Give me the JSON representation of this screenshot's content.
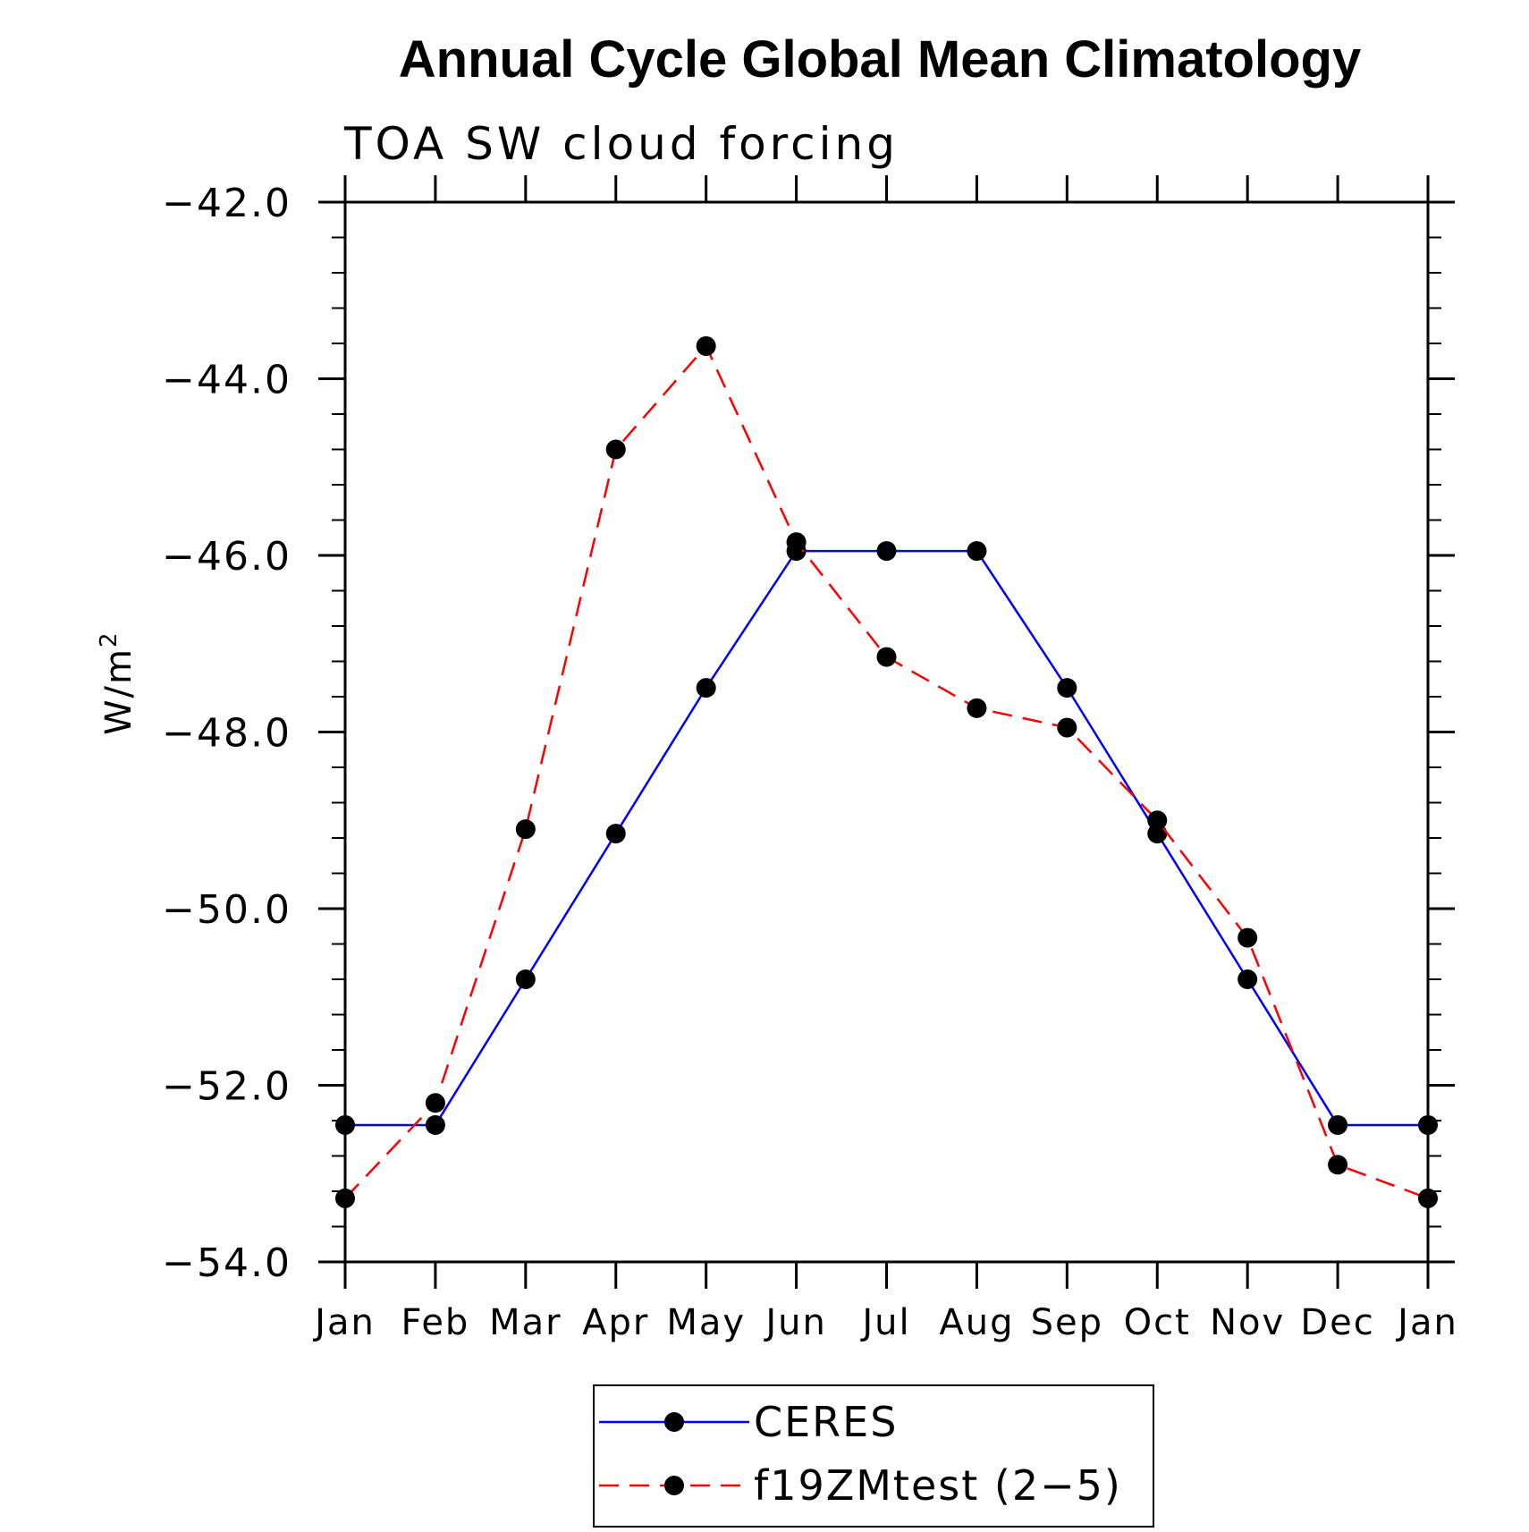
{
  "chart_data": {
    "type": "line",
    "title": "Annual Cycle Global Mean Climatology",
    "subtitle": "TOA SW cloud forcing",
    "ylabel_main": "W/m",
    "ylabel_sup": "2",
    "xlabel": "",
    "categories": [
      "Jan",
      "Feb",
      "Mar",
      "Apr",
      "May",
      "Jun",
      "Jul",
      "Aug",
      "Sep",
      "Oct",
      "Nov",
      "Dec",
      "Jan"
    ],
    "ylim": [
      -54.0,
      -42.0
    ],
    "yticks": [
      -42.0,
      -44.0,
      -46.0,
      -48.0,
      -50.0,
      -52.0,
      -54.0
    ],
    "ytick_labels": [
      "−42.0",
      "−44.0",
      "−46.0",
      "−48.0",
      "−50.0",
      "−52.0",
      "−54.0"
    ],
    "series": [
      {
        "name": "CERES",
        "color": "#0000ff",
        "dash": "solid",
        "values": [
          -52.45,
          -52.45,
          -50.8,
          -49.15,
          -47.5,
          -45.95,
          -45.95,
          -45.95,
          -47.5,
          -49.15,
          -50.8,
          -52.45,
          -52.45
        ]
      },
      {
        "name": "f19ZMtest (2−5)",
        "color": "#ff0000",
        "dash": "dashed",
        "values": [
          -53.28,
          -52.2,
          -49.1,
          -44.8,
          -43.63,
          -45.85,
          -47.15,
          -47.73,
          -47.95,
          -49.0,
          -50.33,
          -52.9,
          -53.28
        ]
      }
    ],
    "legend_position": "bottom-center",
    "marker": "filled-circle",
    "marker_color": "#000000",
    "grid": false
  }
}
